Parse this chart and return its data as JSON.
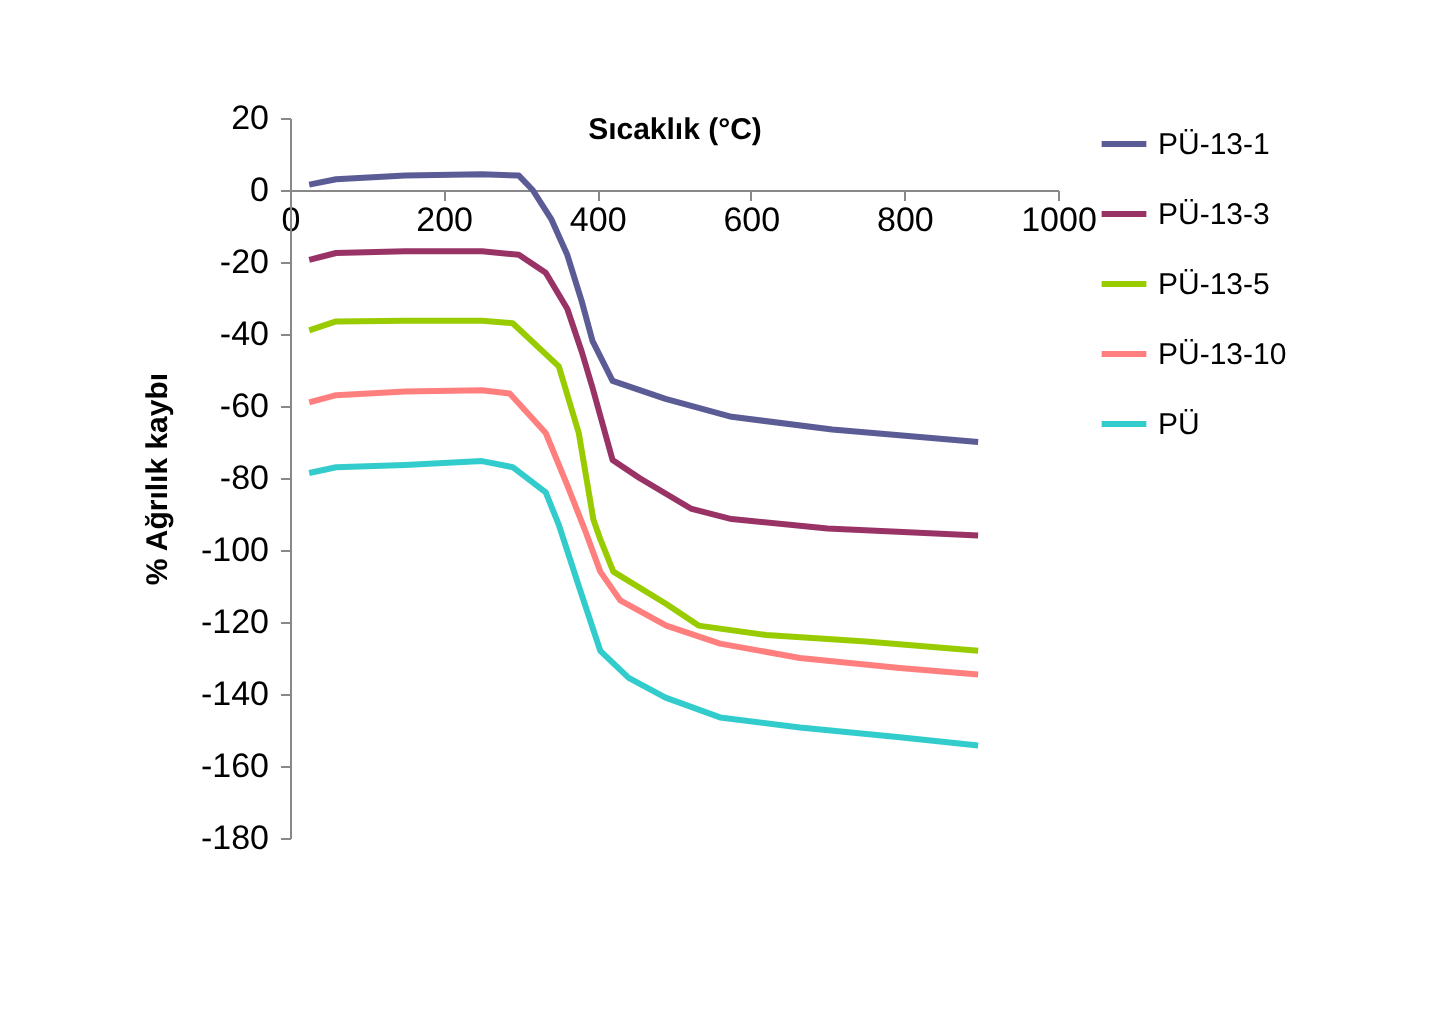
{
  "chart_data": {
    "type": "line",
    "xlabel": "Sıcaklık (°C)",
    "ylabel": "% Ağrılık kaybı",
    "xlim": [
      0,
      1000
    ],
    "ylim": [
      -180,
      20
    ],
    "xticks": [
      0,
      200,
      400,
      600,
      800,
      {
        "value": 1000,
        "label": "1000"
      }
    ],
    "yticks": [
      -180,
      -160,
      -140,
      -120,
      -100,
      -80,
      -60,
      -40,
      -20,
      0,
      20
    ],
    "grid": false,
    "legend": "right",
    "marker": "none",
    "line_style": "solid",
    "series": [
      {
        "name": "PÜ-13-1",
        "color": "#5b5b96",
        "x": [
          25,
          60,
          150,
          250,
          298,
          316,
          340,
          361,
          380,
          394,
          420,
          489,
          575,
          706,
          896
        ],
        "values": [
          1.5,
          3,
          4,
          4.4,
          4,
          0,
          -8,
          -18,
          -31,
          -42,
          -53,
          -58,
          -63,
          -66.5,
          -70
        ]
      },
      {
        "name": "PÜ-13-3",
        "color": "#993366",
        "x": [
          25,
          60,
          150,
          250,
          298,
          333,
          361,
          380,
          394,
          420,
          455,
          523,
          575,
          700,
          896
        ],
        "values": [
          -19.4,
          -17.5,
          -17,
          -17,
          -18,
          -23,
          -33,
          -45,
          -55,
          -75,
          -80,
          -88.6,
          -91.4,
          -94,
          -96
        ]
      },
      {
        "name": "PÜ-13-5",
        "color": "#99cc00",
        "x": [
          25,
          60,
          150,
          250,
          290,
          350,
          376,
          395,
          404,
          421,
          490,
          532,
          620,
          750,
          896
        ],
        "values": [
          -39,
          -36.5,
          -36.3,
          -36.3,
          -37,
          -49,
          -67.5,
          -91.5,
          -97,
          -106,
          -115,
          -121,
          -123.6,
          -125.4,
          -128
        ]
      },
      {
        "name": "PÜ-13-10",
        "color": "#ff7f7f",
        "x": [
          25,
          60,
          150,
          250,
          286,
          333,
          361,
          385,
          404,
          430,
          490,
          560,
          664,
          794,
          896
        ],
        "values": [
          -59,
          -57,
          -56,
          -55.6,
          -56.5,
          -67.5,
          -82,
          -95,
          -106,
          -114,
          -121,
          -126,
          -130,
          -132.8,
          -134.6
        ]
      },
      {
        "name": "PÜ",
        "color": "#33cccc",
        "x": [
          25,
          60,
          150,
          250,
          290,
          333,
          350,
          376,
          404,
          441,
          489,
          560,
          664,
          794,
          896
        ],
        "values": [
          -78.6,
          -77,
          -76.4,
          -75.3,
          -77,
          -84,
          -93,
          -110,
          -128,
          -135.5,
          -141,
          -146.5,
          -149.3,
          -152,
          -154.3
        ]
      }
    ]
  }
}
